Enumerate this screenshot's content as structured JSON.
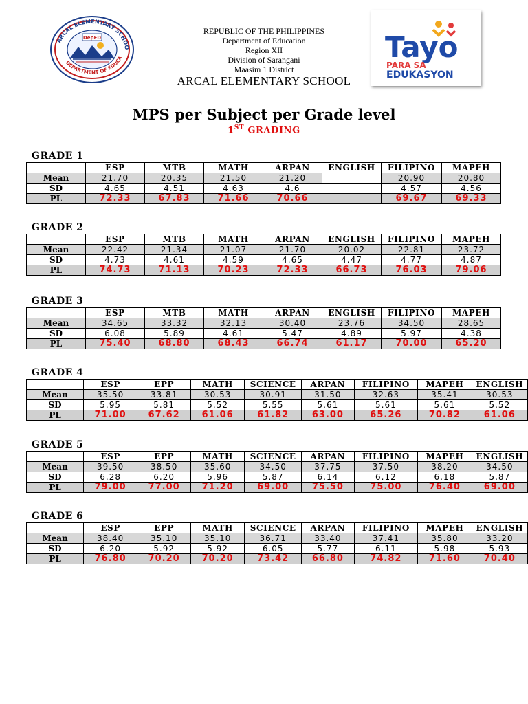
{
  "header": {
    "lines": [
      "REPUBLIC OF THE PHILIPPINES",
      "Department of Education",
      "Region XII",
      "Division of Sarangani",
      "Maasim 1 District"
    ],
    "school": "ARCAL ELEMENTARY SCHOOL",
    "seal_text": "ARCAL ELEMENTARY SCHOOL · DEPARTMENT OF EDUCATION",
    "seal_badge": "DepED",
    "logo": {
      "line1": "Tayo",
      "line2": "PARA SA",
      "line3": "EDUKASYON"
    }
  },
  "title": "MPS per Subject per Grade level",
  "subtitle": {
    "ord": "1",
    "sup": "ST",
    "rest": " GRADING"
  },
  "row_labels": {
    "mean": "Mean",
    "sd": "SD",
    "pl": "PL"
  },
  "grades": [
    {
      "label": "GRADE 1",
      "subjects": [
        "ESP",
        "MTB",
        "MATH",
        "ARPAN",
        "ENGLISH",
        "FILIPINO",
        "MAPEH"
      ],
      "mean": [
        "21.70",
        "20.35",
        "21.50",
        "21.20",
        "",
        "20.90",
        "20.80"
      ],
      "sd": [
        "4.65",
        "4.51",
        "4.63",
        "4.6",
        "",
        "4.57",
        "4.56"
      ],
      "pl": [
        "72.33",
        "67.83",
        "71.66",
        "70.66",
        "",
        "69.67",
        "69.33"
      ]
    },
    {
      "label": "GRADE 2",
      "subjects": [
        "ESP",
        "MTB",
        "MATH",
        "ARPAN",
        "ENGLISH",
        "FILIPINO",
        "MAPEH"
      ],
      "mean": [
        "22.42",
        "21.34",
        "21.07",
        "21.70",
        "20.02",
        "22.81",
        "23.72"
      ],
      "sd": [
        "4.73",
        "4.61",
        "4.59",
        "4.65",
        "4.47",
        "4.77",
        "4.87"
      ],
      "pl": [
        "74.73",
        "71.13",
        "70.23",
        "72.33",
        "66.73",
        "76.03",
        "79.06"
      ]
    },
    {
      "label": "GRADE 3",
      "subjects": [
        "ESP",
        "MTB",
        "MATH",
        "ARPAN",
        "ENGLISH",
        "FILIPINO",
        "MAPEH"
      ],
      "mean": [
        "34.65",
        "33.32",
        "32.13",
        "30.40",
        "23.76",
        "34.50",
        "28.65"
      ],
      "sd": [
        "6.08",
        "5.89",
        "4.61",
        "5.47",
        "4.89",
        "5.97",
        "4.38"
      ],
      "pl": [
        "75.40",
        "68.80",
        "68.43",
        "66.74",
        "61.17",
        "70.00",
        "65.20"
      ]
    },
    {
      "label": "GRADE 4",
      "subjects": [
        "ESP",
        "EPP",
        "MATH",
        "SCIENCE",
        "ARPAN",
        "FILIPINO",
        "MAPEH",
        "ENGLISH"
      ],
      "mean": [
        "35.50",
        "33.81",
        "30.53",
        "30.91",
        "31.50",
        "32.63",
        "35.41",
        "30.53"
      ],
      "sd": [
        "5.95",
        "5.81",
        "5.52",
        "5.55",
        "5.61",
        "5.61",
        "5.61",
        "5.52"
      ],
      "pl": [
        "71.00",
        "67.62",
        "61.06",
        "61.82",
        "63.00",
        "65.26",
        "70.82",
        "61.06"
      ]
    },
    {
      "label": "GRADE 5",
      "subjects": [
        "ESP",
        "EPP",
        "MATH",
        "SCIENCE",
        "ARPAN",
        "FILIPINO",
        "MAPEH",
        "ENGLISH"
      ],
      "mean": [
        "39.50",
        "38.50",
        "35.60",
        "34.50",
        "37.75",
        "37.50",
        "38.20",
        "34.50"
      ],
      "sd": [
        "6.28",
        "6.20",
        "5.96",
        "5.87",
        "6.14",
        "6.12",
        "6.18",
        "5.87"
      ],
      "pl": [
        "79.00",
        "77.00",
        "71.20",
        "69.00",
        "75.50",
        "75.00",
        "76.40",
        "69.00"
      ]
    },
    {
      "label": "GRADE 6",
      "subjects": [
        "ESP",
        "EPP",
        "MATH",
        "SCIENCE",
        "ARPAN",
        "FILIPINO",
        "MAPEH",
        "ENGLISH"
      ],
      "mean": [
        "38.40",
        "35.10",
        "35.10",
        "36.71",
        "33.40",
        "37.41",
        "35.80",
        "33.20"
      ],
      "sd": [
        "6.20",
        "5.92",
        "5.92",
        "6.05",
        "5.77",
        "6.11",
        "5.98",
        "5.93"
      ],
      "pl": [
        "76.80",
        "70.20",
        "70.20",
        "73.42",
        "66.80",
        "74.82",
        "71.60",
        "70.40"
      ]
    }
  ]
}
